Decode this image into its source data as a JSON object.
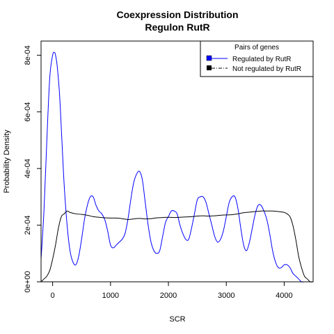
{
  "chart_data": {
    "type": "line",
    "title": [
      "Coexpression Distribution",
      "Regulon RutR"
    ],
    "xlabel": "SCR",
    "ylabel": "Probability Density",
    "xlim": [
      -200,
      4500
    ],
    "ylim": [
      0,
      0.00085
    ],
    "x_ticks": [
      0,
      1000,
      2000,
      3000,
      4000
    ],
    "x_tick_labels": [
      "0",
      "1000",
      "2000",
      "3000",
      "4000"
    ],
    "y_ticks": [
      0,
      0.0002,
      0.0004,
      0.0006,
      0.0008
    ],
    "y_tick_labels": [
      "0e+00",
      "2e-04",
      "4e-04",
      "6e-04",
      "8e-04"
    ],
    "grid": false,
    "legend": {
      "title": "Pairs of genes",
      "position": "top-right",
      "entries": [
        "Regulated by  RutR",
        "Not regulated by  RutR"
      ]
    },
    "series": [
      {
        "name": "Regulated by  RutR",
        "color": "#0000ff",
        "line_style": "solid",
        "x": [
          -200,
          -150,
          -100,
          -50,
          0,
          30,
          50,
          80,
          120,
          160,
          200,
          250,
          300,
          350,
          400,
          450,
          500,
          550,
          600,
          650,
          700,
          750,
          800,
          850,
          900,
          950,
          1000,
          1050,
          1100,
          1150,
          1200,
          1250,
          1300,
          1350,
          1400,
          1450,
          1500,
          1550,
          1600,
          1650,
          1700,
          1750,
          1800,
          1850,
          1900,
          1950,
          2000,
          2050,
          2100,
          2150,
          2200,
          2250,
          2300,
          2350,
          2400,
          2450,
          2500,
          2550,
          2600,
          2650,
          2700,
          2750,
          2800,
          2850,
          2900,
          2950,
          3000,
          3050,
          3100,
          3150,
          3200,
          3250,
          3300,
          3350,
          3400,
          3450,
          3500,
          3550,
          3600,
          3650,
          3700,
          3750,
          3800,
          3850,
          3900,
          3950,
          4000,
          4050,
          4100,
          4150,
          4200,
          4250,
          4300,
          4350,
          4400,
          4450,
          4500
        ],
        "y": [
          8e-05,
          0.00025,
          0.0005,
          0.00072,
          0.0008,
          0.00081,
          0.0008,
          0.00076,
          0.00066,
          0.0005,
          0.00034,
          0.0002,
          0.00011,
          7e-05,
          6e-05,
          9e-05,
          0.00015,
          0.00022,
          0.00027,
          0.0003,
          0.0003,
          0.00027,
          0.00025,
          0.00024,
          0.00022,
          0.00018,
          0.00013,
          0.00012,
          0.00013,
          0.00014,
          0.00015,
          0.00017,
          0.00022,
          0.00029,
          0.00035,
          0.00038,
          0.00039,
          0.00036,
          0.00028,
          0.0002,
          0.00014,
          0.00011,
          0.0001,
          0.00011,
          0.00016,
          0.00021,
          0.00023,
          0.00025,
          0.00025,
          0.00024,
          0.0002,
          0.00017,
          0.00015,
          0.00015,
          0.00019,
          0.00024,
          0.00029,
          0.0003,
          0.0003,
          0.00028,
          0.00024,
          0.0002,
          0.00016,
          0.00014,
          0.00015,
          0.00018,
          0.00023,
          0.00028,
          0.0003,
          0.0003,
          0.00026,
          0.00019,
          0.00013,
          0.00011,
          0.00014,
          0.00019,
          0.00024,
          0.00027,
          0.00027,
          0.00025,
          0.00022,
          0.00017,
          0.00011,
          7e-05,
          5e-05,
          5e-05,
          6e-05,
          6e-05,
          5e-05,
          3e-05,
          2e-05,
          1e-05,
          0.0,
          0.0,
          0.0,
          0.0,
          0.0
        ]
      },
      {
        "name": "Not regulated by  RutR",
        "color": "#000000",
        "line_style": "solid",
        "x": [
          -200,
          -150,
          -100,
          -50,
          0,
          50,
          100,
          150,
          200,
          250,
          300,
          400,
          500,
          600,
          700,
          800,
          900,
          1000,
          1100,
          1200,
          1300,
          1400,
          1500,
          1600,
          1700,
          1800,
          1900,
          2000,
          2100,
          2200,
          2300,
          2400,
          2500,
          2600,
          2700,
          2800,
          2900,
          3000,
          3100,
          3200,
          3300,
          3400,
          3500,
          3600,
          3700,
          3800,
          3900,
          4000,
          4050,
          4100,
          4150,
          4200,
          4250,
          4300,
          4350,
          4400,
          4450,
          4500
        ],
        "y": [
          0.0,
          1e-05,
          2e-05,
          4e-05,
          8e-05,
          0.00013,
          0.00019,
          0.00023,
          0.00024,
          0.00025,
          0.000245,
          0.00024,
          0.000238,
          0.000235,
          0.00023,
          0.000228,
          0.000226,
          0.000225,
          0.000225,
          0.000223,
          0.00022,
          0.000222,
          0.000224,
          0.000222,
          0.000223,
          0.000226,
          0.000227,
          0.000228,
          0.000227,
          0.000228,
          0.000229,
          0.00023,
          0.000232,
          0.000233,
          0.000232,
          0.000233,
          0.000235,
          0.000236,
          0.000237,
          0.00024,
          0.000244,
          0.000246,
          0.000248,
          0.00025,
          0.00025,
          0.00025,
          0.000248,
          0.000245,
          0.00024,
          0.00023,
          0.0002,
          0.00015,
          9e-05,
          5e-05,
          2e-05,
          1e-05,
          0.0,
          0.0
        ]
      }
    ]
  }
}
